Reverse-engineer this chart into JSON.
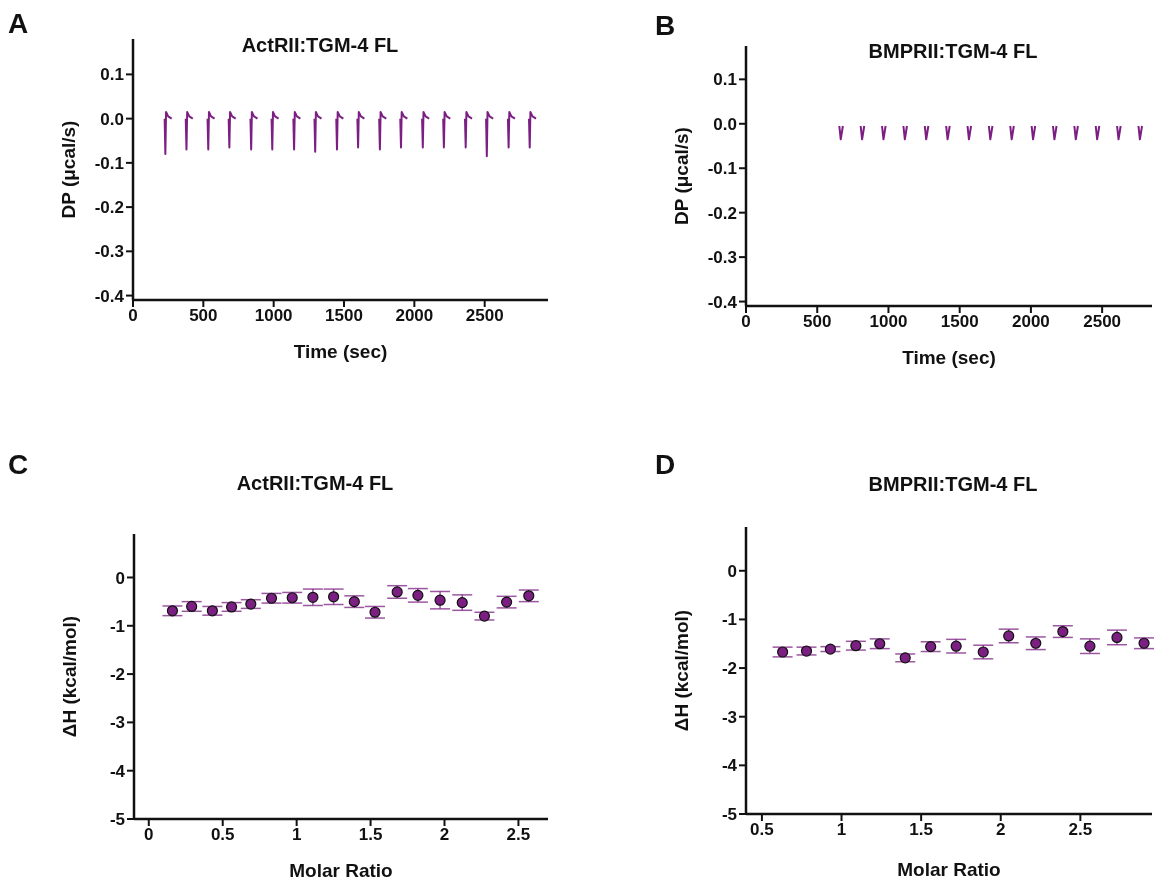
{
  "chart_data": [
    {
      "type": "line",
      "title": "ActRII:TGM-4 FL",
      "annotations": [
        "A"
      ],
      "xlabel": "Time (sec)",
      "ylabel": "DP (μcal/s)",
      "xlim": [
        0,
        2950
      ],
      "xticks": [
        0,
        500,
        1000,
        1500,
        2000,
        2500
      ],
      "ylim": [
        -0.41,
        0.18
      ],
      "yticks": [
        0.1,
        {
          "value": 0,
          "label": "0.0"
        },
        -0.1,
        -0.2,
        -0.3,
        -0.4
      ],
      "series": [
        {
          "color": "#7b1f82",
          "x": [
            225,
            230,
            235,
            250,
            275
          ],
          "values": [
            0,
            -0.08,
            0.015,
            0.005,
            0
          ]
        },
        {
          "color": "#7b1f82",
          "x": [
            375,
            380,
            385,
            400,
            425
          ],
          "values": [
            0,
            -0.07,
            0.015,
            0.005,
            0
          ]
        },
        {
          "color": "#7b1f82",
          "x": [
            530,
            535,
            540,
            555,
            580
          ],
          "values": [
            0,
            -0.07,
            0.015,
            0.005,
            0
          ]
        },
        {
          "color": "#7b1f82",
          "x": [
            680,
            685,
            690,
            705,
            730
          ],
          "values": [
            0,
            -0.065,
            0.015,
            0.005,
            0
          ]
        },
        {
          "color": "#7b1f82",
          "x": [
            835,
            840,
            845,
            860,
            885
          ],
          "values": [
            0,
            -0.07,
            0.015,
            0.005,
            0
          ]
        },
        {
          "color": "#7b1f82",
          "x": [
            985,
            990,
            995,
            1010,
            1035
          ],
          "values": [
            0,
            -0.07,
            0.015,
            0.005,
            0
          ]
        },
        {
          "color": "#7b1f82",
          "x": [
            1140,
            1145,
            1150,
            1165,
            1190
          ],
          "values": [
            0,
            -0.07,
            0.015,
            0.005,
            0
          ]
        },
        {
          "color": "#7b1f82",
          "x": [
            1290,
            1295,
            1300,
            1315,
            1340
          ],
          "values": [
            0,
            -0.075,
            0.015,
            0.005,
            0
          ]
        },
        {
          "color": "#7b1f82",
          "x": [
            1445,
            1450,
            1455,
            1470,
            1495
          ],
          "values": [
            0,
            -0.07,
            0.015,
            0.005,
            0
          ]
        },
        {
          "color": "#7b1f82",
          "x": [
            1595,
            1600,
            1605,
            1620,
            1645
          ],
          "values": [
            0,
            -0.065,
            0.015,
            0.005,
            0
          ]
        },
        {
          "color": "#7b1f82",
          "x": [
            1750,
            1755,
            1760,
            1775,
            1800
          ],
          "values": [
            0,
            -0.07,
            0.015,
            0.005,
            0
          ]
        },
        {
          "color": "#7b1f82",
          "x": [
            1900,
            1905,
            1910,
            1925,
            1950
          ],
          "values": [
            0,
            -0.065,
            0.015,
            0.005,
            0
          ]
        },
        {
          "color": "#7b1f82",
          "x": [
            2055,
            2060,
            2065,
            2080,
            2105
          ],
          "values": [
            0,
            -0.065,
            0.015,
            0.005,
            0
          ]
        },
        {
          "color": "#7b1f82",
          "x": [
            2205,
            2210,
            2215,
            2230,
            2255
          ],
          "values": [
            0,
            -0.065,
            0.015,
            0.005,
            0
          ]
        },
        {
          "color": "#7b1f82",
          "x": [
            2360,
            2365,
            2370,
            2385,
            2410
          ],
          "values": [
            0,
            -0.065,
            0.015,
            0.005,
            0
          ]
        },
        {
          "color": "#7b1f82",
          "x": [
            2510,
            2515,
            2520,
            2535,
            2560
          ],
          "values": [
            0,
            -0.085,
            0.015,
            0.005,
            0
          ]
        },
        {
          "color": "#7b1f82",
          "x": [
            2665,
            2670,
            2675,
            2690,
            2715
          ],
          "values": [
            0,
            -0.065,
            0.015,
            0.005,
            0
          ]
        },
        {
          "color": "#7b1f82",
          "x": [
            2815,
            2820,
            2825,
            2840,
            2865
          ],
          "values": [
            0,
            -0.065,
            0.015,
            0.005,
            0
          ]
        }
      ]
    },
    {
      "type": "line",
      "title": "BMPRII:TGM-4 FL",
      "annotations": [
        "B"
      ],
      "xlabel": "Time (sec)",
      "ylabel": "DP (μcal/s)",
      "xlim": [
        0,
        2850
      ],
      "xticks": [
        0,
        500,
        1000,
        1500,
        2000,
        2500
      ],
      "ylim": [
        -0.41,
        0.175
      ],
      "yticks": [
        0.1,
        {
          "value": 0,
          "label": "0.0"
        },
        -0.1,
        -0.2,
        -0.3,
        -0.4
      ],
      "series": [
        {
          "color": "#7b1f82",
          "x": [
            655,
            665,
            680
          ],
          "values": [
            -0.005,
            -0.035,
            -0.005
          ]
        },
        {
          "color": "#7b1f82",
          "x": [
            805,
            815,
            830
          ],
          "values": [
            -0.005,
            -0.035,
            -0.005
          ]
        },
        {
          "color": "#7b1f82",
          "x": [
            955,
            965,
            980
          ],
          "values": [
            -0.005,
            -0.035,
            -0.005
          ]
        },
        {
          "color": "#7b1f82",
          "x": [
            1105,
            1115,
            1130
          ],
          "values": [
            -0.005,
            -0.035,
            -0.005
          ]
        },
        {
          "color": "#7b1f82",
          "x": [
            1255,
            1265,
            1280
          ],
          "values": [
            -0.005,
            -0.035,
            -0.005
          ]
        },
        {
          "color": "#7b1f82",
          "x": [
            1405,
            1415,
            1430
          ],
          "values": [
            -0.005,
            -0.035,
            -0.005
          ]
        },
        {
          "color": "#7b1f82",
          "x": [
            1555,
            1565,
            1580
          ],
          "values": [
            -0.005,
            -0.035,
            -0.005
          ]
        },
        {
          "color": "#7b1f82",
          "x": [
            1705,
            1715,
            1730
          ],
          "values": [
            -0.005,
            -0.035,
            -0.005
          ]
        },
        {
          "color": "#7b1f82",
          "x": [
            1855,
            1865,
            1880
          ],
          "values": [
            -0.005,
            -0.035,
            -0.005
          ]
        },
        {
          "color": "#7b1f82",
          "x": [
            2005,
            2015,
            2030
          ],
          "values": [
            -0.005,
            -0.035,
            -0.005
          ]
        },
        {
          "color": "#7b1f82",
          "x": [
            2155,
            2165,
            2180
          ],
          "values": [
            -0.005,
            -0.035,
            -0.005
          ]
        },
        {
          "color": "#7b1f82",
          "x": [
            2305,
            2315,
            2330
          ],
          "values": [
            -0.005,
            -0.035,
            -0.005
          ]
        },
        {
          "color": "#7b1f82",
          "x": [
            2455,
            2465,
            2480
          ],
          "values": [
            -0.005,
            -0.035,
            -0.005
          ]
        },
        {
          "color": "#7b1f82",
          "x": [
            2605,
            2615,
            2630
          ],
          "values": [
            -0.005,
            -0.035,
            -0.005
          ]
        },
        {
          "color": "#7b1f82",
          "x": [
            2755,
            2765,
            2780
          ],
          "values": [
            -0.005,
            -0.035,
            -0.005
          ]
        }
      ]
    },
    {
      "type": "scatter",
      "title": "ActRII:TGM-4 FL",
      "annotations": [
        "C"
      ],
      "xlabel": "Molar Ratio",
      "ylabel": "ΔH (kcal/mol)",
      "xlim": [
        -0.1,
        2.7
      ],
      "xticks": [
        0,
        0.5,
        1,
        1.5,
        2,
        2.5
      ],
      "ylim": [
        -5,
        0.9
      ],
      "yticks": [
        0,
        -1,
        -2,
        -3,
        -4,
        -5
      ],
      "marker": "circle",
      "series": [
        {
          "color": "#7b1f82",
          "x": [
            0.16,
            0.29,
            0.43,
            0.56,
            0.69,
            0.83,
            0.97,
            1.11,
            1.25,
            1.39,
            1.53,
            1.68,
            1.82,
            1.97,
            2.12,
            2.27,
            2.42,
            2.57
          ],
          "values": [
            -0.69,
            -0.6,
            -0.69,
            -0.61,
            -0.55,
            -0.43,
            -0.42,
            -0.41,
            -0.4,
            -0.5,
            -0.72,
            -0.3,
            -0.37,
            -0.47,
            -0.52,
            -0.8,
            -0.51,
            -0.38
          ],
          "errors": [
            0.1,
            0.1,
            0.09,
            0.09,
            0.09,
            0.1,
            0.11,
            0.17,
            0.16,
            0.12,
            0.12,
            0.13,
            0.14,
            0.18,
            0.16,
            0.08,
            0.12,
            0.12
          ]
        }
      ]
    },
    {
      "type": "scatter",
      "title": "BMPRII:TGM-4 FL",
      "annotations": [
        "D"
      ],
      "xlabel": "Molar Ratio",
      "ylabel": "ΔH (kcal/mol)",
      "xlim": [
        0.4,
        2.95
      ],
      "xticks": [
        0.5,
        1,
        1.5,
        2,
        2.5
      ],
      "ylim": [
        -5,
        0.9
      ],
      "yticks": [
        0,
        -1,
        -2,
        -3,
        -4,
        -5
      ],
      "marker": "circle",
      "series": [
        {
          "color": "#7b1f82",
          "x": [
            0.63,
            0.78,
            0.93,
            1.09,
            1.24,
            1.4,
            1.56,
            1.72,
            1.89,
            2.05,
            2.22,
            2.39,
            2.56,
            2.73,
            2.9
          ],
          "values": [
            -1.67,
            -1.65,
            -1.61,
            -1.54,
            -1.5,
            -1.79,
            -1.56,
            -1.55,
            -1.67,
            -1.34,
            -1.49,
            -1.25,
            -1.55,
            -1.37,
            -1.49
          ],
          "errors": [
            0.1,
            0.08,
            0.05,
            0.09,
            0.1,
            0.08,
            0.1,
            0.14,
            0.14,
            0.14,
            0.13,
            0.12,
            0.15,
            0.15,
            0.11
          ]
        }
      ]
    }
  ]
}
